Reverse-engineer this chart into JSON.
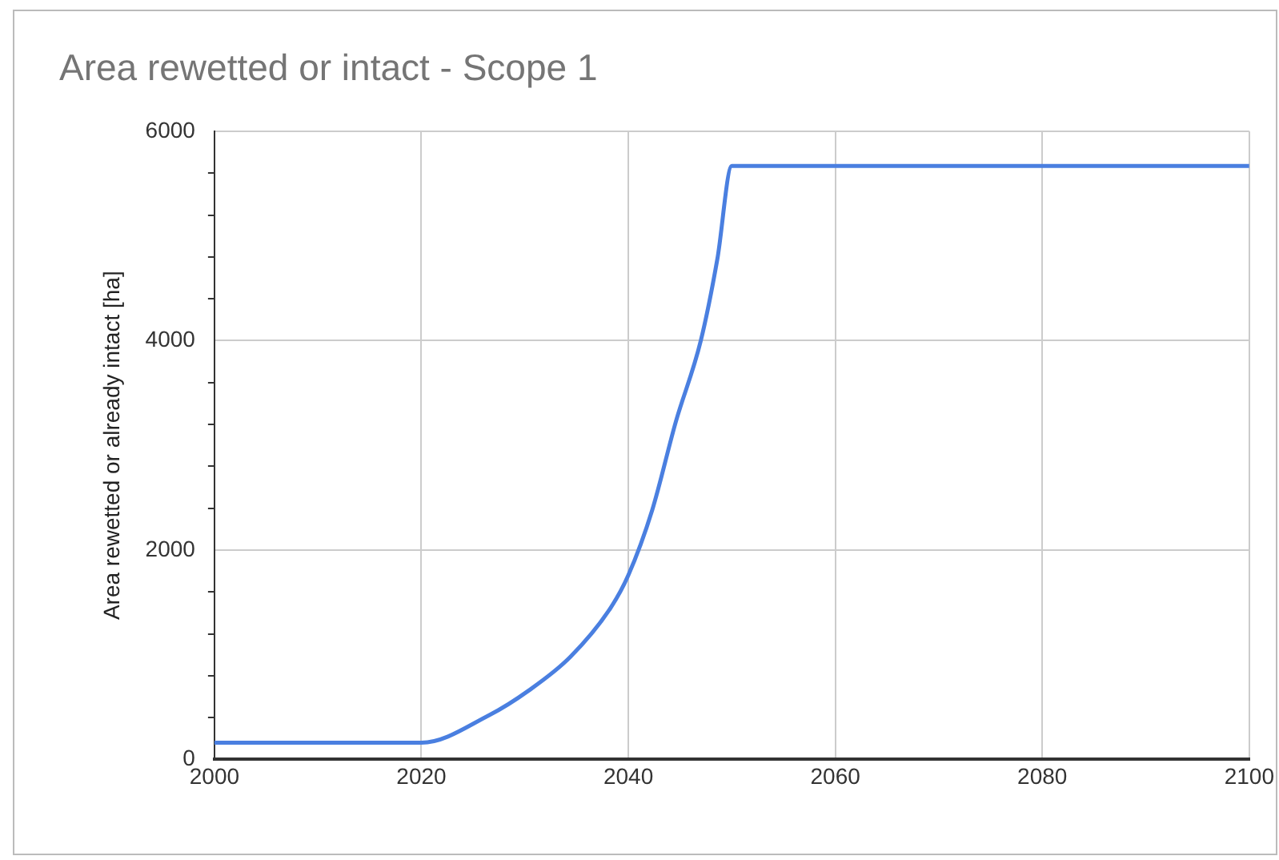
{
  "chart_data": {
    "type": "line",
    "title": "Area rewetted or intact - Scope 1",
    "ylabel": "Area rewetted or already intact [ha]",
    "x": [
      2000,
      2020,
      2026.5,
      2030.4,
      2034.4,
      2038.3,
      2040,
      2042.3,
      2044.6,
      2047,
      2048.6,
      2050,
      2100
    ],
    "series": [
      {
        "color": "#4a7fe0",
        "values": [
          160,
          160,
          420,
          660,
          980,
          1450,
          1760,
          2380,
          3230,
          4000,
          4780,
          5670,
          5670
        ]
      }
    ],
    "xlim": [
      2000,
      2100
    ],
    "xticks": [
      2000,
      2020,
      2040,
      2060,
      2080,
      2100
    ],
    "ylim": [
      0,
      6000
    ],
    "yticks": [
      0,
      {
        "value": 400,
        "label": null
      },
      {
        "value": 800,
        "label": null
      },
      {
        "value": 1200,
        "label": null
      },
      {
        "value": 1600,
        "label": null
      },
      2000,
      {
        "value": 2400,
        "label": null
      },
      {
        "value": 2800,
        "label": null
      },
      {
        "value": 3200,
        "label": null
      },
      {
        "value": 3600,
        "label": null
      },
      4000,
      {
        "value": 4400,
        "label": null
      },
      {
        "value": 4800,
        "label": null
      },
      {
        "value": 5200,
        "label": null
      },
      {
        "value": 5600,
        "label": null
      },
      6000
    ],
    "grid": true,
    "legend": false,
    "marker": "none",
    "line_style": "solid"
  }
}
